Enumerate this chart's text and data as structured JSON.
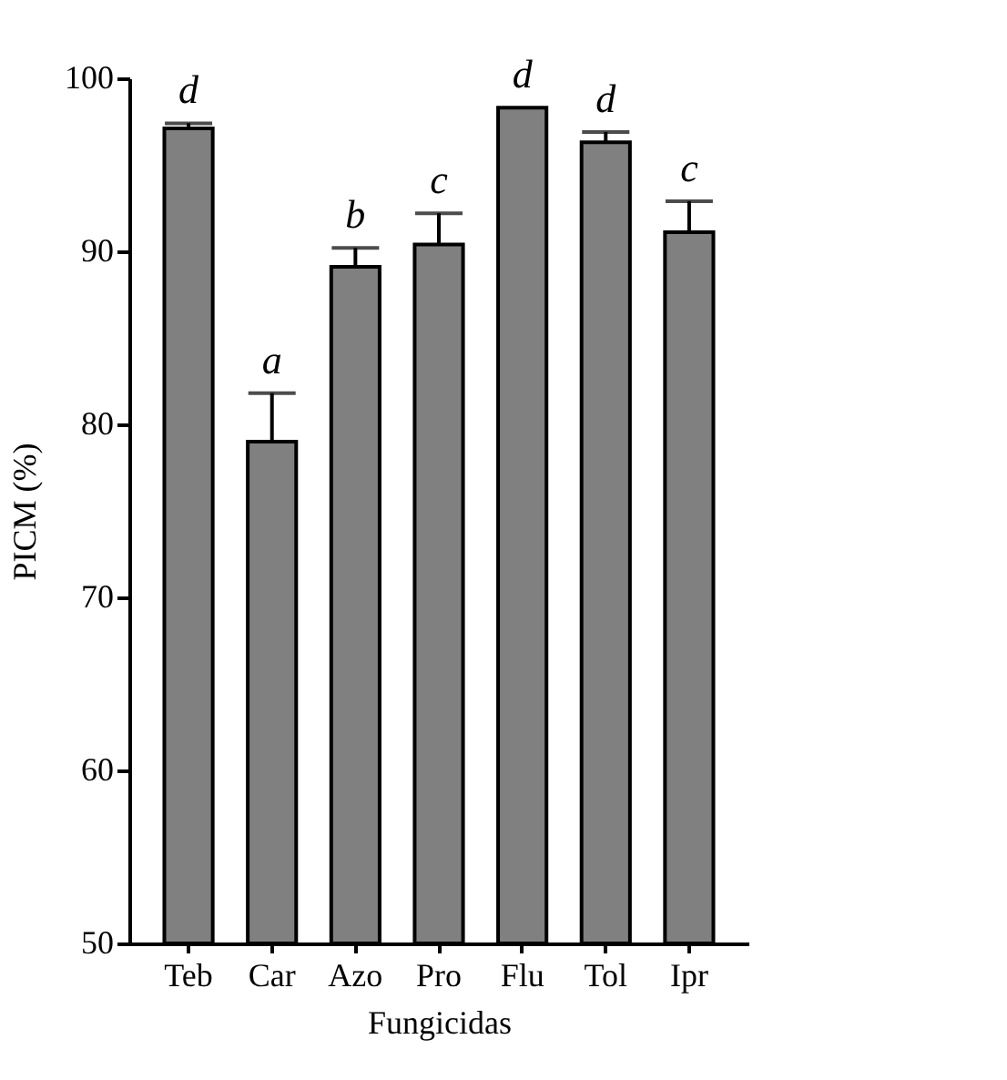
{
  "chart_data": {
    "type": "bar",
    "xlabel": "Fungicidas",
    "ylabel": "PICM (%)",
    "categories": [
      "Teb",
      "Car",
      "Azo",
      "Pro",
      "Flu",
      "Tol",
      "Ipr"
    ],
    "values": [
      97.1,
      79.0,
      89.1,
      90.4,
      98.3,
      96.3,
      91.1
    ],
    "errors": [
      [
        97.1,
        97.4
      ],
      [
        79.0,
        81.8
      ],
      [
        89.1,
        90.2
      ],
      [
        90.4,
        92.2
      ],
      null,
      [
        96.3,
        96.9
      ],
      [
        91.1,
        92.9
      ]
    ],
    "color": "#808080",
    "ylim": [
      50,
      100
    ],
    "yticks": [
      50,
      60,
      70,
      80,
      90,
      100
    ],
    "grid": false,
    "annotations": [
      {
        "text": "d",
        "x": "Teb",
        "y": 97.4
      },
      {
        "text": "a",
        "x": "Car",
        "y": 81.8
      },
      {
        "text": "b",
        "x": "Azo",
        "y": 90.2
      },
      {
        "text": "c",
        "x": "Pro",
        "y": 92.2
      },
      {
        "text": "d",
        "x": "Flu",
        "y": 98.3
      },
      {
        "text": "d",
        "x": "Tol",
        "y": 96.9
      },
      {
        "text": "c",
        "x": "Ipr",
        "y": 92.9
      }
    ]
  }
}
